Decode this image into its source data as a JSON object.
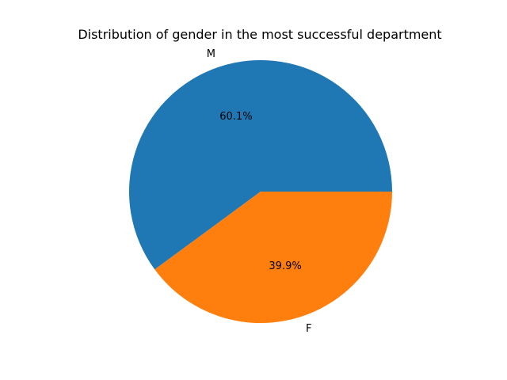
{
  "chart_data": {
    "type": "pie",
    "title": "Distribution of gender in the most successful department",
    "categories": [
      "M",
      "F"
    ],
    "values": [
      60.1,
      39.9
    ],
    "percent_labels": [
      "60.1%",
      "39.9%"
    ],
    "colors": [
      "#1f77b4",
      "#ff7f0e"
    ],
    "start_angle_deg": 0,
    "direction": "counterclockwise",
    "legend": "none"
  }
}
